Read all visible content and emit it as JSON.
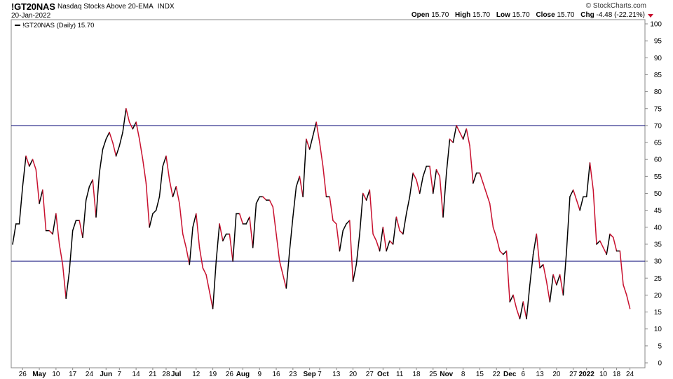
{
  "header": {
    "symbol": "!GT20NAS",
    "description": "Nasdaq Stocks Above 20-EMA",
    "exchange": "INDX",
    "date": "20-Jan-2022",
    "brand": "© StockCharts.com",
    "open_label": "Open",
    "open": "15.70",
    "high_label": "High",
    "high": "15.70",
    "low_label": "Low",
    "low": "15.70",
    "close_label": "Close",
    "close": "15.70",
    "chg_label": "Chg",
    "chg": "-4.48 (-22.21%)"
  },
  "legend": {
    "text": "!GT20NAS (Daily) 15.70"
  },
  "colors": {
    "up": "#000000",
    "down": "#c8102e",
    "hline": "#1a1a80",
    "grid": "#cccccc"
  },
  "chart_data": {
    "type": "line",
    "ylim": [
      0,
      100
    ],
    "y_ticks": [
      0,
      5,
      10,
      15,
      20,
      25,
      30,
      35,
      40,
      45,
      50,
      55,
      60,
      65,
      70,
      75,
      80,
      85,
      90,
      95,
      100
    ],
    "x_ticks": [
      {
        "i": 3,
        "label": "26"
      },
      {
        "i": 8,
        "label": "May",
        "bold": true
      },
      {
        "i": 13,
        "label": "10"
      },
      {
        "i": 18,
        "label": "17"
      },
      {
        "i": 23,
        "label": "24"
      },
      {
        "i": 28,
        "label": "Jun",
        "bold": true
      },
      {
        "i": 32,
        "label": "7"
      },
      {
        "i": 37,
        "label": "14"
      },
      {
        "i": 42,
        "label": "21"
      },
      {
        "i": 46,
        "label": "28"
      },
      {
        "i": 49,
        "label": "Jul",
        "bold": true
      },
      {
        "i": 55,
        "label": "12"
      },
      {
        "i": 60,
        "label": "19"
      },
      {
        "i": 65,
        "label": "26"
      },
      {
        "i": 69,
        "label": "Aug",
        "bold": true
      },
      {
        "i": 74,
        "label": "9"
      },
      {
        "i": 79,
        "label": "16"
      },
      {
        "i": 84,
        "label": "23"
      },
      {
        "i": 89,
        "label": "Sep",
        "bold": true
      },
      {
        "i": 92,
        "label": "7"
      },
      {
        "i": 97,
        "label": "13"
      },
      {
        "i": 102,
        "label": "20"
      },
      {
        "i": 107,
        "label": "27"
      },
      {
        "i": 111,
        "label": "Oct",
        "bold": true
      },
      {
        "i": 116,
        "label": "11"
      },
      {
        "i": 121,
        "label": "18"
      },
      {
        "i": 126,
        "label": "25"
      },
      {
        "i": 130,
        "label": "Nov",
        "bold": true
      },
      {
        "i": 135,
        "label": "8"
      },
      {
        "i": 140,
        "label": "15"
      },
      {
        "i": 145,
        "label": "22"
      },
      {
        "i": 149,
        "label": "Dec",
        "bold": true
      },
      {
        "i": 153,
        "label": "6"
      },
      {
        "i": 158,
        "label": "13"
      },
      {
        "i": 163,
        "label": "20"
      },
      {
        "i": 168,
        "label": "27"
      },
      {
        "i": 172,
        "label": "2022",
        "bold": true
      },
      {
        "i": 177,
        "label": "10"
      },
      {
        "i": 181,
        "label": "18"
      },
      {
        "i": 185,
        "label": "24"
      }
    ],
    "h_lines": [
      70,
      30
    ],
    "values": [
      35,
      41,
      41,
      52,
      61,
      58,
      60,
      57,
      47,
      51,
      39,
      39,
      38,
      44,
      35,
      29,
      19,
      27,
      39,
      42,
      42,
      37,
      48,
      52,
      54,
      43,
      56,
      63,
      66,
      68,
      65,
      61,
      64,
      68,
      75,
      71,
      69,
      71,
      66,
      60,
      53,
      40,
      44,
      45,
      49,
      58,
      61,
      54,
      49,
      52,
      47,
      38,
      34,
      29,
      40,
      44,
      34,
      28,
      26,
      21,
      16,
      30,
      41,
      36,
      38,
      38,
      30,
      44,
      44,
      41,
      41,
      43,
      34,
      47,
      49,
      49,
      48,
      48,
      46,
      38,
      30,
      26,
      22,
      33,
      43,
      52,
      55,
      49,
      66,
      63,
      67,
      71,
      65,
      58,
      49,
      49,
      42,
      41,
      33,
      39,
      41,
      42,
      24,
      29,
      38,
      50,
      48,
      51,
      38,
      36,
      33,
      40,
      33,
      36,
      35,
      43,
      39,
      38,
      44,
      49,
      56,
      54,
      50,
      55,
      58,
      58,
      50,
      57,
      55,
      43,
      56,
      66,
      65,
      70,
      68,
      66,
      69,
      64,
      53,
      56,
      56,
      53,
      50,
      47,
      40,
      37,
      33,
      32,
      33,
      18,
      20,
      16,
      13,
      18,
      13,
      23,
      32,
      38,
      28,
      29,
      24,
      18,
      26,
      23,
      26,
      20,
      33,
      49,
      51,
      48,
      45,
      49,
      49,
      59,
      51,
      35,
      36,
      34,
      32,
      38,
      37,
      33,
      33,
      23,
      20,
      16
    ]
  }
}
